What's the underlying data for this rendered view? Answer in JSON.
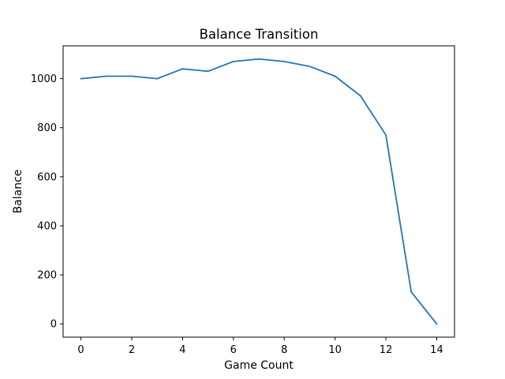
{
  "chart_data": {
    "type": "line",
    "title": "Balance Transition",
    "xlabel": "Game Count",
    "ylabel": "Balance",
    "xlim": [
      -0.7,
      14.7
    ],
    "ylim": [
      -54,
      1134
    ],
    "x_ticks": [
      0,
      2,
      4,
      6,
      8,
      10,
      12,
      14
    ],
    "y_ticks": [
      0,
      200,
      400,
      600,
      800,
      1000
    ],
    "grid": false,
    "series": [
      {
        "color": "#1f77b4",
        "x": [
          0,
          1,
          2,
          3,
          4,
          5,
          6,
          7,
          8,
          9,
          10,
          11,
          12,
          13,
          14
        ],
        "values": [
          1000,
          1010,
          1010,
          1000,
          1040,
          1030,
          1070,
          1080,
          1070,
          1050,
          1010,
          930,
          770,
          130,
          0
        ]
      }
    ]
  }
}
